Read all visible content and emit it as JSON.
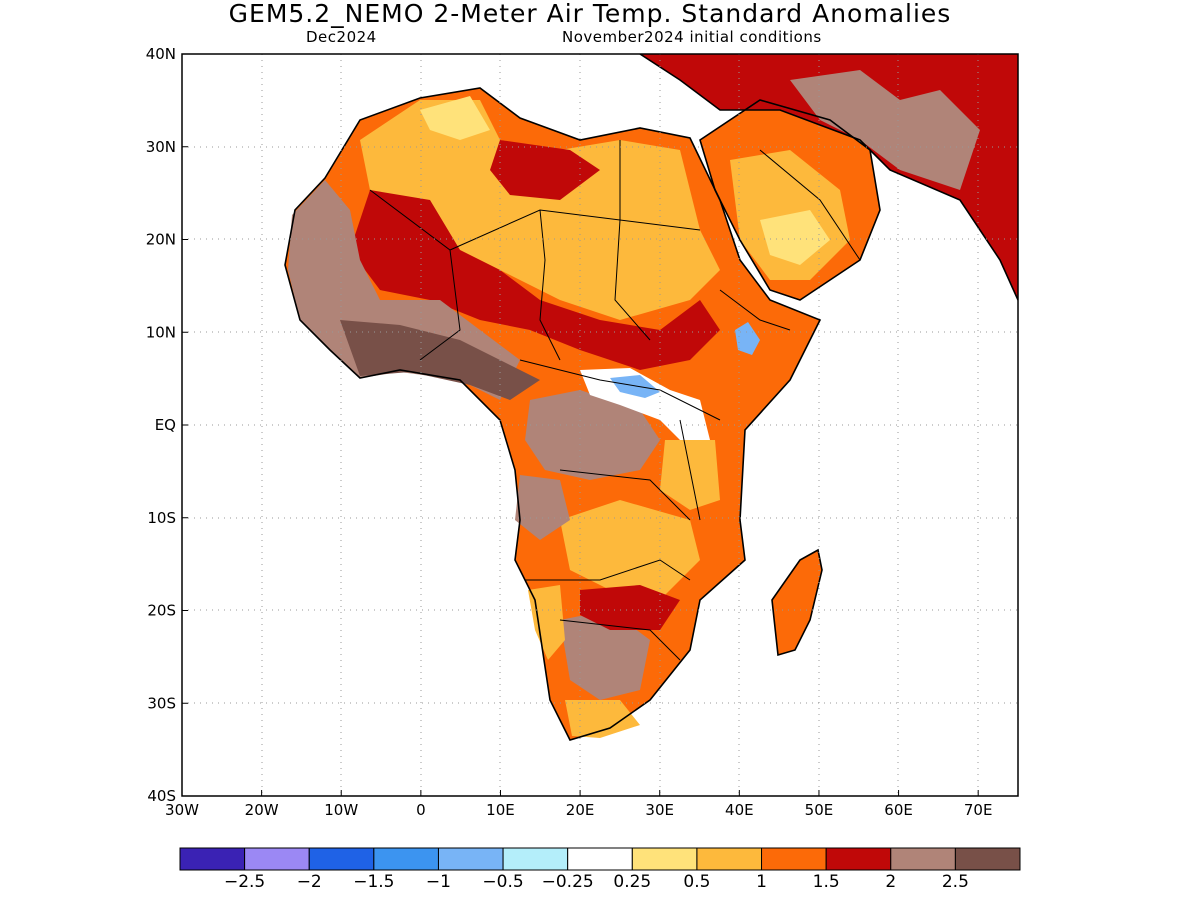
{
  "header": {
    "title": "GEM5.2_NEMO 2-Meter Air Temp. Standard Anomalies",
    "valid_month": "Dec2024",
    "init_label": "November2024 initial conditions"
  },
  "map": {
    "lon_range": [
      -30,
      75
    ],
    "lat_range": [
      -40,
      40
    ],
    "lon_ticks": [
      {
        "value": -30,
        "label": "30W"
      },
      {
        "value": -20,
        "label": "20W"
      },
      {
        "value": -10,
        "label": "10W"
      },
      {
        "value": 0,
        "label": "0"
      },
      {
        "value": 10,
        "label": "10E"
      },
      {
        "value": 20,
        "label": "20E"
      },
      {
        "value": 30,
        "label": "30E"
      },
      {
        "value": 40,
        "label": "40E"
      },
      {
        "value": 50,
        "label": "50E"
      },
      {
        "value": 60,
        "label": "60E"
      },
      {
        "value": 70,
        "label": "70E"
      }
    ],
    "lat_ticks": [
      {
        "value": 40,
        "label": "40N"
      },
      {
        "value": 30,
        "label": "30N"
      },
      {
        "value": 20,
        "label": "20N"
      },
      {
        "value": 10,
        "label": "10N"
      },
      {
        "value": 0,
        "label": "EQ"
      },
      {
        "value": -10,
        "label": "10S"
      },
      {
        "value": -20,
        "label": "20S"
      },
      {
        "value": -30,
        "label": "30S"
      },
      {
        "value": -40,
        "label": "40S"
      }
    ],
    "grid": true
  },
  "colorbar": {
    "colors": [
      "#3a22b4",
      "#9b88f4",
      "#1f62e6",
      "#3c94f0",
      "#78b4f6",
      "#b4eefa",
      "#ffffff",
      "#ffe27a",
      "#fdb93c",
      "#fc6a08",
      "#c00808",
      "#b08478",
      "#785048"
    ],
    "labels": [
      "-2.5",
      "-2",
      "-1.5",
      "-1",
      "-0.5",
      "-0.25",
      "0.25",
      "0.5",
      "1",
      "1.5",
      "2",
      "2.5"
    ]
  }
}
